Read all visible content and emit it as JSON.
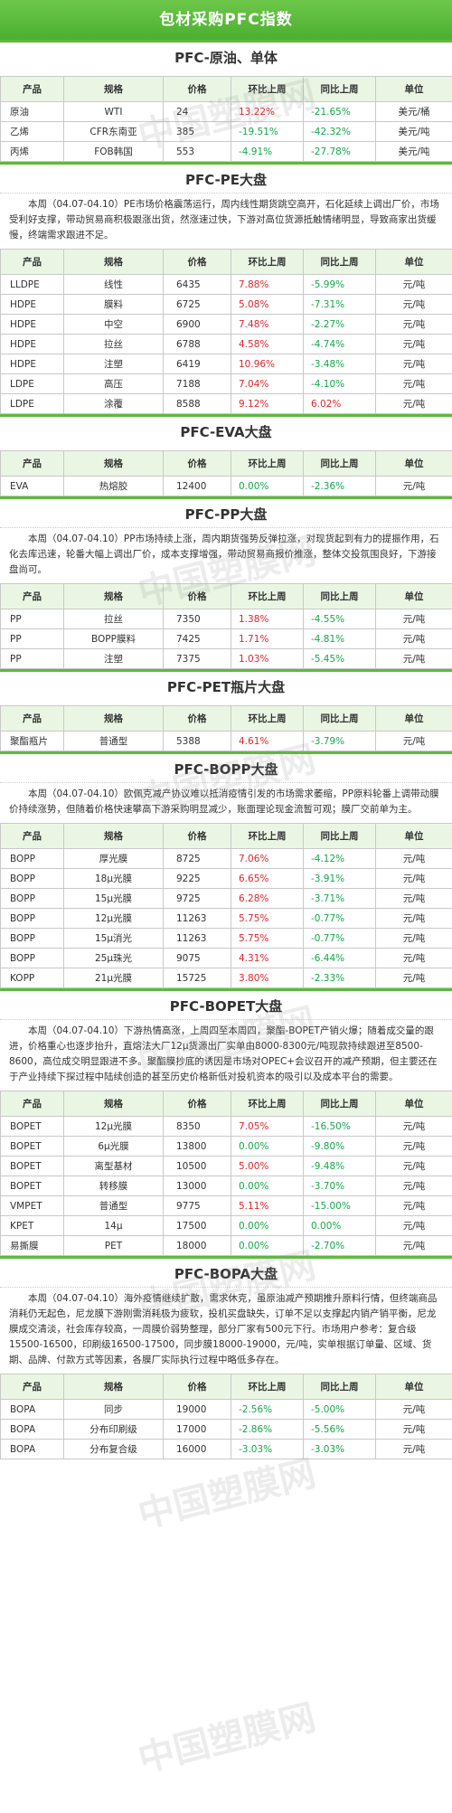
{
  "title": "包材采购PFC指数",
  "watermark": "中国塑膜网",
  "headers": [
    "产品",
    "规格",
    "价格",
    "环比上周",
    "同比上周",
    "单位"
  ],
  "sections": [
    {
      "title": "PFC-原油、单体",
      "desc": "",
      "rows": [
        [
          "原油",
          "WTI",
          "24",
          "13.22%",
          "-21.65%",
          "美元/桶"
        ],
        [
          "乙烯",
          "CFR东南亚",
          "385",
          "-19.51%",
          "-42.32%",
          "美元/吨"
        ],
        [
          "丙烯",
          "FOB韩国",
          "553",
          "-4.91%",
          "-27.78%",
          "美元/吨"
        ]
      ]
    },
    {
      "title": "PFC-PE大盘",
      "desc": "本周（04.07-04.10）PE市场价格震荡运行，周内线性期货跳空高开，石化延续上调出厂价，市场受利好支撑，带动贸易商积极跟涨出货，然涨速过快，下游对高位货源抵触情绪明显，导致商家出货缓慢，终端需求跟进不足。",
      "rows": [
        [
          "LLDPE",
          "线性",
          "6435",
          "7.88%",
          "-5.99%",
          "元/吨"
        ],
        [
          "HDPE",
          "膜料",
          "6725",
          "5.08%",
          "-7.31%",
          "元/吨"
        ],
        [
          "HDPE",
          "中空",
          "6900",
          "7.48%",
          "-2.27%",
          "元/吨"
        ],
        [
          "HDPE",
          "拉丝",
          "6788",
          "4.58%",
          "-4.74%",
          "元/吨"
        ],
        [
          "HDPE",
          "注塑",
          "6419",
          "10.96%",
          "-3.48%",
          "元/吨"
        ],
        [
          "LDPE",
          "高压",
          "7188",
          "7.04%",
          "-4.10%",
          "元/吨"
        ],
        [
          "LDPE",
          "涂覆",
          "8588",
          "9.12%",
          "6.02%",
          "元/吨"
        ]
      ]
    },
    {
      "title": "PFC-EVA大盘",
      "desc": "",
      "rows": [
        [
          "EVA",
          "热熔胶",
          "12400",
          "0.00%",
          "-2.36%",
          "元/吨"
        ]
      ]
    },
    {
      "title": "PFC-PP大盘",
      "desc": "本周（04.07-04.10）PP市场持续上涨，周内期货强势反弹拉涨，对现货起到有力的提振作用，石化去库迅速，轮番大幅上调出厂价，成本支撑增强，带动贸易商报价推涨，整体交投氛围良好，下游接盘尚可。",
      "rows": [
        [
          "PP",
          "拉丝",
          "7350",
          "1.38%",
          "-4.55%",
          "元/吨"
        ],
        [
          "PP",
          "BOPP膜料",
          "7425",
          "1.71%",
          "-4.81%",
          "元/吨"
        ],
        [
          "PP",
          "注塑",
          "7375",
          "1.03%",
          "-5.45%",
          "元/吨"
        ]
      ]
    },
    {
      "title": "PFC-PET瓶片大盘",
      "desc": "",
      "rows": [
        [
          "聚酯瓶片",
          "普通型",
          "5388",
          "4.61%",
          "-3.79%",
          "元/吨"
        ]
      ]
    },
    {
      "title": "PFC-BOPP大盘",
      "desc": "本周（04.07-04.10）欧佩克减产协议难以抵消疫情引发的市场需求萎缩，PP原料轮番上调带动膜价持续涨势，但随着价格快速攀高下游采购明显减少，账面理论现金流暂可观；膜厂交前单为主。",
      "rows": [
        [
          "BOPP",
          "厚光膜",
          "8725",
          "7.06%",
          "-4.12%",
          "元/吨"
        ],
        [
          "BOPP",
          "18μ光膜",
          "9225",
          "6.65%",
          "-3.91%",
          "元/吨"
        ],
        [
          "BOPP",
          "15μ光膜",
          "9725",
          "6.28%",
          "-3.71%",
          "元/吨"
        ],
        [
          "BOPP",
          "12μ光膜",
          "11263",
          "5.75%",
          "-0.77%",
          "元/吨"
        ],
        [
          "BOPP",
          "15μ消光",
          "11263",
          "5.75%",
          "-0.77%",
          "元/吨"
        ],
        [
          "BOPP",
          "25μ珠光",
          "9075",
          "4.31%",
          "-6.44%",
          "元/吨"
        ],
        [
          "KOPP",
          "21μ光膜",
          "15725",
          "3.80%",
          "-2.33%",
          "元/吨"
        ]
      ]
    },
    {
      "title": "PFC-BOPET大盘",
      "desc": "本周（04.07-04.10）下游热情高涨，上周四至本周四，聚酯-BOPET产销火爆；随着成交量的跟进，价格重心也逐步抬升，直熔法大厂12μ货源出厂实单由8000-8300元/吨现款持续跟进至8500-8600，高位成交明显跟进不多。聚酯膜抄底的诱因是市场对OPEC+会议召开的减产预期，但主要还在于产业持续下探过程中陆续创造的甚至历史价格新低对投机资本的吸引以及成本平台的需要。",
      "rows": [
        [
          "BOPET",
          "12μ光膜",
          "8350",
          "7.05%",
          "-16.50%",
          "元/吨"
        ],
        [
          "BOPET",
          "6μ光膜",
          "13800",
          "0.00%",
          "-9.80%",
          "元/吨"
        ],
        [
          "BOPET",
          "离型基材",
          "10500",
          "5.00%",
          "-9.48%",
          "元/吨"
        ],
        [
          "BOPET",
          "转移膜",
          "13000",
          "0.00%",
          "-3.70%",
          "元/吨"
        ],
        [
          "VMPET",
          "普通型",
          "9775",
          "5.11%",
          "-15.00%",
          "元/吨"
        ],
        [
          "KPET",
          "14μ",
          "17500",
          "0.00%",
          "0.00%",
          "元/吨"
        ],
        [
          "易撕膜",
          "PET",
          "18000",
          "0.00%",
          "-2.70%",
          "元/吨"
        ]
      ]
    },
    {
      "title": "PFC-BOPA大盘",
      "desc": "本周（04.07-04.10）海外疫情继续扩散，需求休克，虽原油减产预期推升原料行情，但终端商品消耗仍无起色，尼龙膜下游刚需消耗极为疲软，投机买盘缺失，订单不足以支撑起内销产销平衡，尼龙膜成交清淡，社会库存较高，一周膜价弱势整理，部分厂家有500元下行。市场用户参考：复合级15500-16500，印刷级16500-17500，同步膜18000-19000，元/吨，实单根据订单量、区域、货期、品牌、付款方式等因素，各膜厂实际执行过程中略低多存在。",
      "rows": [
        [
          "BOPA",
          "同步",
          "19000",
          "-2.56%",
          "-5.00%",
          "元/吨"
        ],
        [
          "BOPA",
          "分布印刷级",
          "17000",
          "-2.86%",
          "-5.56%",
          "元/吨"
        ],
        [
          "BOPA",
          "分布复合级",
          "16000",
          "-3.03%",
          "-3.03%",
          "元/吨"
        ]
      ]
    }
  ]
}
